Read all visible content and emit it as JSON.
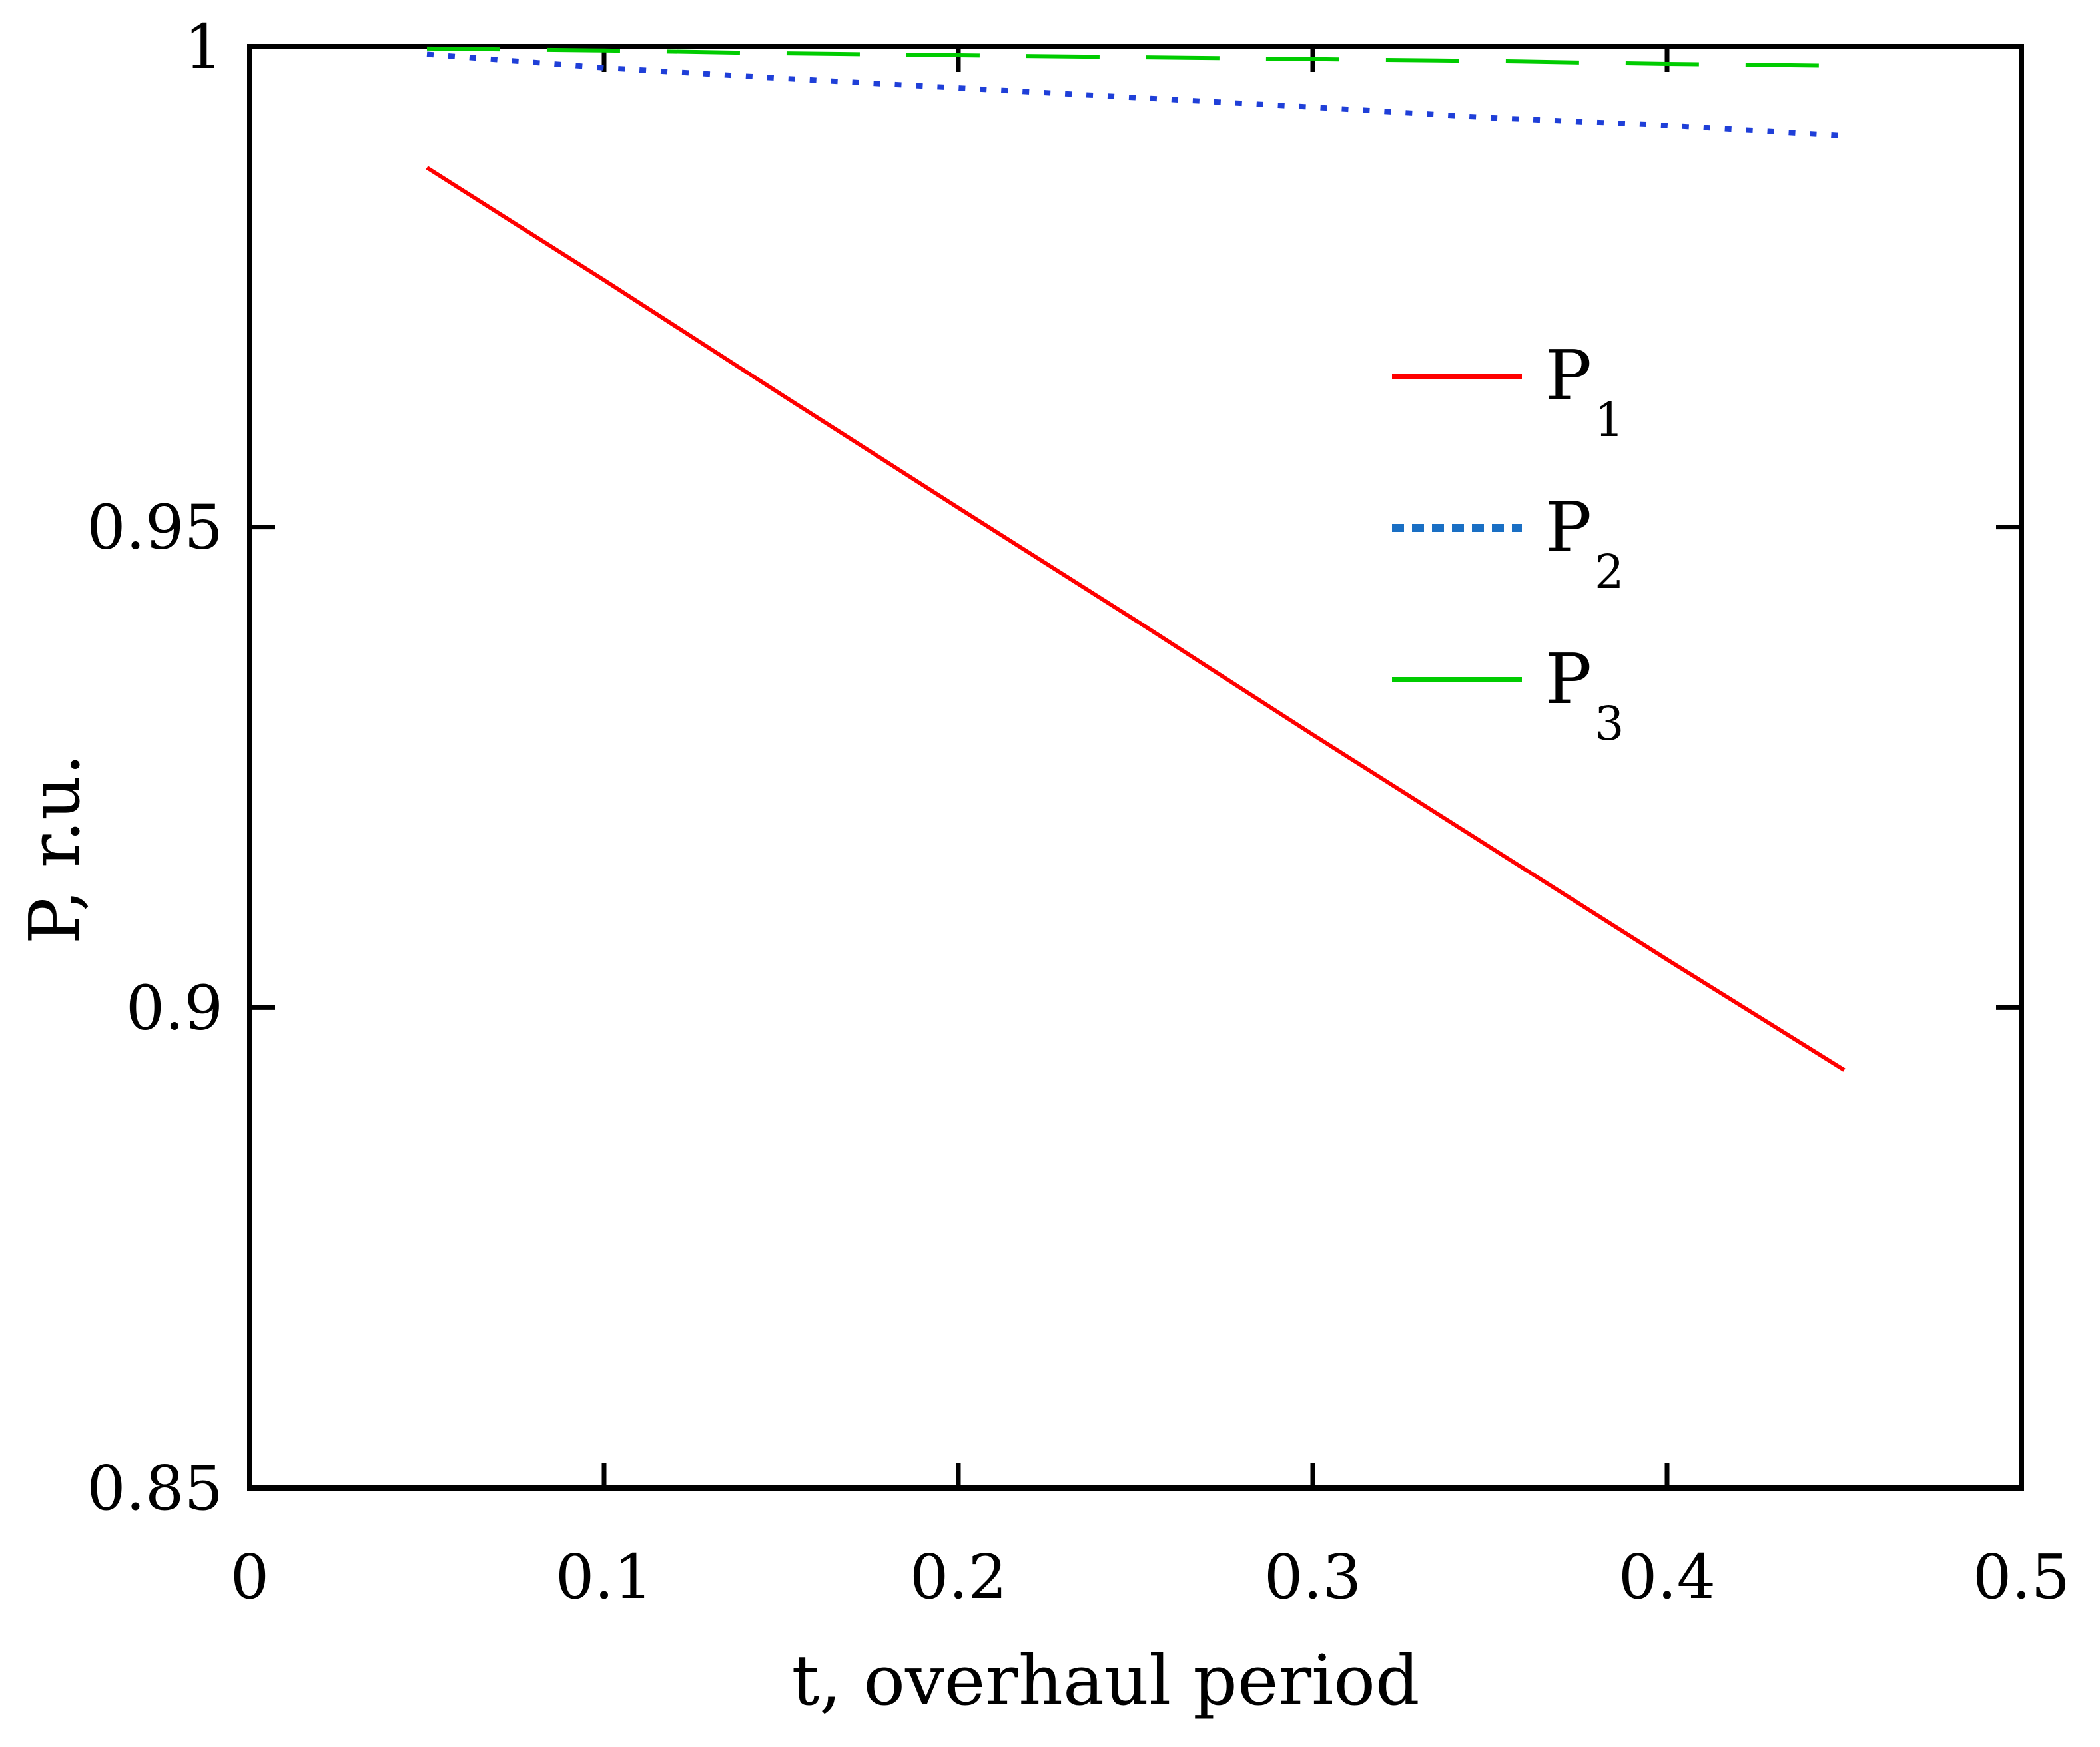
{
  "chart_data": {
    "type": "line",
    "title": "",
    "xlabel": "t, overhaul period",
    "ylabel": "P, r.u.",
    "xlim": [
      0,
      0.5
    ],
    "ylim": [
      0.85,
      1.0
    ],
    "xticks": [
      0,
      0.1,
      0.2,
      0.3,
      0.4,
      0.5
    ],
    "xtick_labels": [
      "0",
      "0.1",
      "0.2",
      "0.3",
      "0.4",
      "0.5"
    ],
    "yticks": [
      0.85,
      0.9,
      0.95,
      1.0
    ],
    "ytick_labels": [
      "0.85",
      "0.9",
      "0.95",
      "1"
    ],
    "grid": false,
    "legend_position": "right-middle",
    "series": [
      {
        "name": "P1",
        "label_main": "P",
        "label_sub": "1",
        "color": "#ff0000",
        "style": "solid",
        "x": [
          0.05,
          0.1,
          0.15,
          0.2,
          0.25,
          0.3,
          0.35,
          0.4,
          0.45
        ],
        "y": [
          0.9874,
          0.9757,
          0.9638,
          0.952,
          0.9403,
          0.9284,
          0.9167,
          0.905,
          0.8935
        ]
      },
      {
        "name": "P2",
        "label_main": "P",
        "label_sub": "2",
        "color": "#1f3fd8",
        "legend_color": "#1a6fc4",
        "style": "dotted",
        "x": [
          0.05,
          0.1,
          0.15,
          0.2,
          0.25,
          0.3,
          0.35,
          0.4,
          0.45
        ],
        "y": [
          0.9992,
          0.9978,
          0.9967,
          0.9957,
          0.9947,
          0.9937,
          0.9926,
          0.9918,
          0.9907
        ]
      },
      {
        "name": "P3",
        "label_main": "P",
        "label_sub": "3",
        "color": "#00cc00",
        "style": "dashed",
        "x": [
          0.05,
          0.1,
          0.15,
          0.2,
          0.25,
          0.3,
          0.35,
          0.4,
          0.45
        ],
        "y": [
          0.9998,
          0.9996,
          0.9993,
          0.9991,
          0.9989,
          0.9987,
          0.9985,
          0.9982,
          0.998
        ]
      }
    ]
  }
}
